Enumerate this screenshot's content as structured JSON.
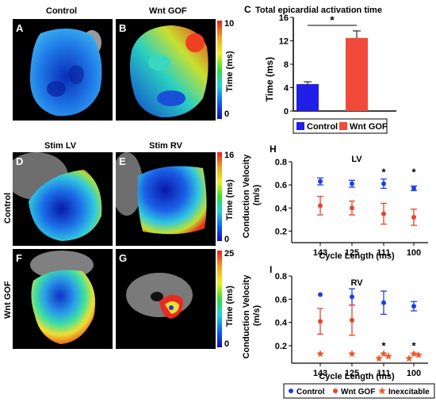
{
  "top_labels": {
    "control": "Control",
    "wnt_gof": "Wnt GOF"
  },
  "panels": {
    "A": "A",
    "B": "B",
    "C": "C",
    "D": "D",
    "E": "E",
    "F": "F",
    "G": "G",
    "H": "H",
    "I": "I"
  },
  "stim_labels": {
    "lv": "Stim LV",
    "rv": "Stim RV"
  },
  "row_labels": {
    "control": "Control",
    "wnt_gof": "Wnt GOF"
  },
  "colorbars": [
    {
      "max": "10",
      "min": "0",
      "label": "Time (ms)"
    },
    {
      "max": "16",
      "min": "0",
      "label": "Time (ms)"
    },
    {
      "max": "25",
      "min": "0",
      "label": "Time (ms)"
    }
  ],
  "chart_data": [
    {
      "type": "bar",
      "title": "Total epicardial activation time",
      "ylabel": "Time (ms)",
      "ylim": [
        0,
        16
      ],
      "yticks": [
        "0",
        "4",
        "8",
        "12",
        "16"
      ],
      "categories": [
        "Control",
        "Wnt GOF"
      ],
      "values": [
        4.6,
        12.5
      ],
      "errors": [
        0.4,
        1.2
      ],
      "colors": [
        "#1f1fe6",
        "#f24a3a"
      ],
      "significance": "*",
      "legend": [
        "Control",
        "Wnt GOF"
      ]
    },
    {
      "type": "scatter",
      "title": "LV",
      "ylabel": "Conduction Velocity (m/s)",
      "xlabel": "Cycle Length (ms)",
      "ylim": [
        0.1,
        0.8
      ],
      "yticks": [
        "0.2",
        "0.4",
        "0.6",
        "0.8"
      ],
      "categories": [
        "143",
        "125",
        "111",
        "100"
      ],
      "series": [
        {
          "name": "Control",
          "color": "#1f3fe0",
          "values": [
            0.63,
            0.61,
            0.61,
            0.57
          ],
          "errors": [
            0.03,
            0.03,
            0.04,
            0.02
          ]
        },
        {
          "name": "Wnt GOF",
          "color": "#e8452c",
          "values": [
            0.42,
            0.4,
            0.35,
            0.32
          ],
          "errors": [
            0.08,
            0.06,
            0.09,
            0.07
          ]
        }
      ],
      "annotations": [
        {
          "category": "111",
          "text": "*"
        },
        {
          "category": "100",
          "text": "*"
        }
      ]
    },
    {
      "type": "scatter",
      "title": "RV",
      "ylabel": "Conduction Velocity (m/s)",
      "xlabel": "Cycle Length (ms)",
      "ylim": [
        0.05,
        0.8
      ],
      "yticks": [
        "0.2",
        "0.4",
        "0.6",
        "0.8"
      ],
      "categories": [
        "143",
        "125",
        "111",
        "100"
      ],
      "series": [
        {
          "name": "Control",
          "color": "#1f3fe0",
          "values": [
            0.64,
            0.62,
            0.57,
            0.54
          ],
          "errors": [
            0.0,
            0.07,
            0.1,
            0.04
          ]
        },
        {
          "name": "Wnt GOF",
          "color": "#e8452c",
          "values": [
            0.41,
            0.42,
            null,
            null
          ],
          "errors": [
            0.11,
            0.13,
            0,
            0
          ]
        }
      ],
      "inexcitable_points": [
        {
          "category": "143",
          "values": [
            0.13
          ]
        },
        {
          "category": "125",
          "values": [
            0.13
          ]
        },
        {
          "category": "111",
          "values": [
            0.13,
            0.09,
            0.11
          ]
        },
        {
          "category": "100",
          "values": [
            0.13,
            0.09,
            0.12
          ]
        }
      ],
      "annotations": [
        {
          "category": "111",
          "text": "*"
        },
        {
          "category": "100",
          "text": "*"
        }
      ],
      "legend": [
        "Control",
        "Wnt GOF",
        "Inexcitable"
      ]
    }
  ]
}
